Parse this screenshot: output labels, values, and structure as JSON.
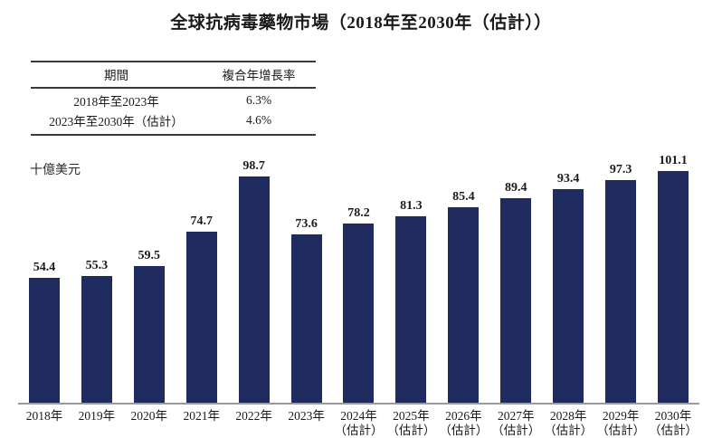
{
  "cagr_table": {
    "col_headers": [
      "期間",
      "複合年增長率"
    ],
    "rows": [
      {
        "period": "2018年至2023年",
        "cagr": "6.3%"
      },
      {
        "period": "2023年至2030年（估計）",
        "cagr": "4.6%"
      }
    ]
  },
  "chart_data": {
    "type": "bar",
    "title": "全球抗病毒藥物市場（2018年至2030年（估計））",
    "unit_label": "十億美元",
    "categories": [
      "2018年",
      "2019年",
      "2020年",
      "2021年",
      "2022年",
      "2023年",
      "2024年\n（估計）",
      "2025年\n（估計）",
      "2026年\n（估計）",
      "2027年\n（估計）",
      "2028年\n（估計）",
      "2029年\n（估計）",
      "2030年\n（估計）"
    ],
    "values": [
      54.4,
      55.3,
      59.5,
      74.7,
      98.7,
      73.6,
      78.2,
      81.3,
      85.4,
      89.4,
      93.4,
      97.3,
      101.1
    ],
    "ylabel": "十億美元",
    "xlabel": "",
    "ylim": [
      0,
      105
    ],
    "grid": false,
    "legend": null,
    "data_labels": true,
    "bar_color": "#1f2b5e",
    "axis_line_color": "#9a9a9a"
  }
}
